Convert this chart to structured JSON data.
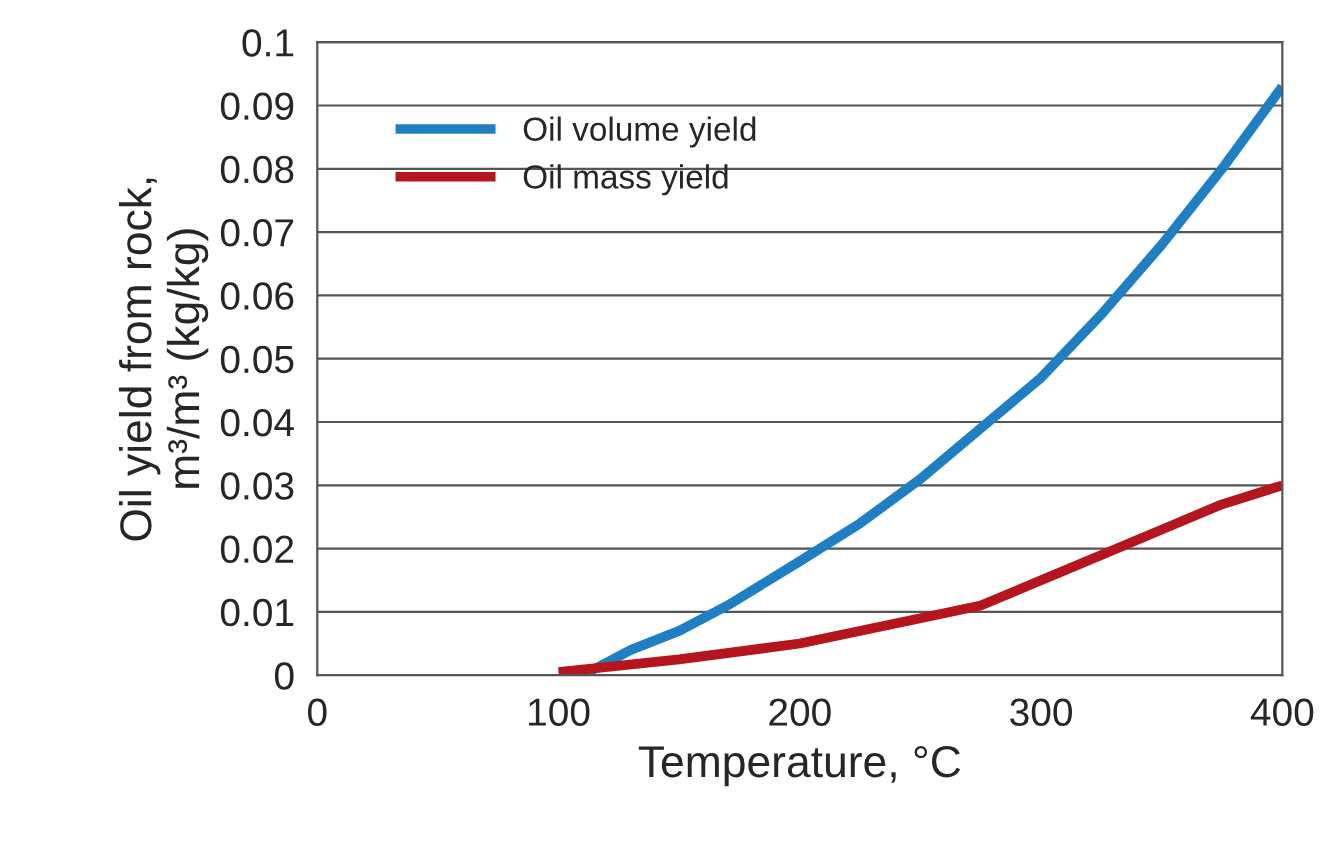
{
  "chart_data": {
    "type": "line",
    "xlabel": "Temperature, °C",
    "ylabel": "Oil yield from rock,\nm³/m³ (kg/kg)",
    "xlim": [
      0,
      400
    ],
    "xticks": [
      0,
      100,
      200,
      300,
      400
    ],
    "ylim": [
      0,
      0.1
    ],
    "yticks": [
      0,
      0.01,
      0.02,
      0.03,
      0.04,
      0.05,
      0.06,
      0.07,
      0.08,
      0.09,
      0.1
    ],
    "grid": "y",
    "legend": "top left",
    "marker": "none",
    "line_style": "solid",
    "series": [
      {
        "name": "Oil volume yield",
        "color": "#1f7fc4",
        "x": [
          110,
          130,
          150,
          170,
          200,
          225,
          250,
          275,
          300,
          325,
          350,
          375,
          400
        ],
        "values": [
          0,
          0.004,
          0.007,
          0.011,
          0.018,
          0.024,
          0.031,
          0.039,
          0.047,
          0.057,
          0.068,
          0.08,
          0.093
        ]
      },
      {
        "name": "Oil mass yield",
        "color": "#b5161d",
        "x": [
          100,
          150,
          200,
          250,
          275,
          300,
          325,
          350,
          375,
          400
        ],
        "values": [
          0.0005,
          0.0025,
          0.005,
          0.009,
          0.011,
          0.015,
          0.019,
          0.023,
          0.027,
          0.03
        ]
      }
    ]
  }
}
